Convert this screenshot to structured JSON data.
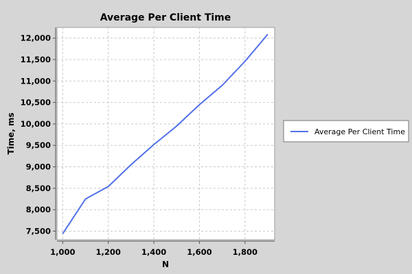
{
  "chart_data": {
    "type": "line",
    "title": "Average Per Client Time",
    "xlabel": "N",
    "ylabel": "Time, ms",
    "xlim": [
      975,
      1930
    ],
    "ylim": [
      7300,
      12250
    ],
    "x_ticks": [
      1000,
      1200,
      1400,
      1600,
      1800
    ],
    "x_tick_labels": [
      "1,000",
      "1,200",
      "1,400",
      "1,600",
      "1,800"
    ],
    "y_ticks": [
      7500,
      8000,
      8500,
      9000,
      9500,
      10000,
      10500,
      11000,
      11500,
      12000
    ],
    "y_tick_labels": [
      "7,500",
      "8,000",
      "8,500",
      "9,000",
      "9,500",
      "10,000",
      "10,500",
      "11,000",
      "11,500",
      "12,000"
    ],
    "grid": true,
    "legend_position": "right",
    "series": [
      {
        "name": "Average Per Client Time",
        "color": "#4f6fe8",
        "x": [
          1000,
          1100,
          1200,
          1300,
          1400,
          1500,
          1600,
          1700,
          1800,
          1900
        ],
        "y": [
          7440,
          8250,
          8540,
          9050,
          9520,
          9950,
          10450,
          10900,
          11460,
          12090
        ]
      }
    ]
  }
}
